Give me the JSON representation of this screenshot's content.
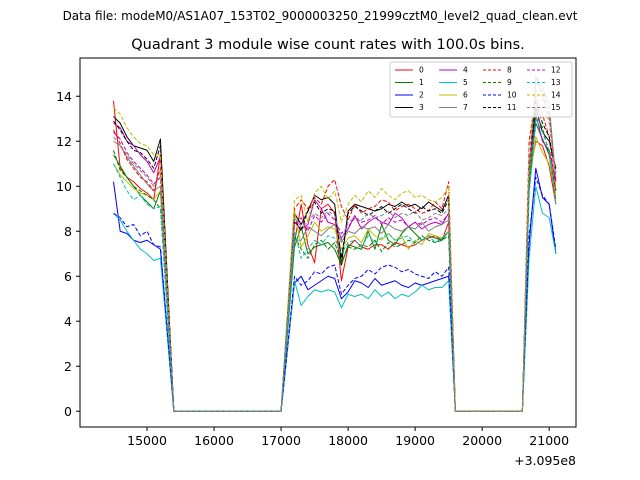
{
  "header": {
    "file_line": "Data file: modeM0/AS1A07_153T02_9000003250_21999cztM0_level2_quad_clean.evt"
  },
  "chart_data": {
    "type": "line",
    "title": "Quadrant 3 module wise count rates with 100.0s bins.",
    "xlabel": "",
    "ylabel": "",
    "x_offset_label": "+3.095e8",
    "xlim": [
      14000,
      21400
    ],
    "ylim": [
      -0.7,
      15.7
    ],
    "x_ticks": [
      15000,
      16000,
      17000,
      18000,
      19000,
      20000,
      21000
    ],
    "x_tick_labels": [
      "15000",
      "16000",
      "17000",
      "18000",
      "19000",
      "20000",
      "21000"
    ],
    "y_ticks": [
      0,
      2,
      4,
      6,
      8,
      10,
      12,
      14
    ],
    "y_tick_labels": [
      "0",
      "2",
      "4",
      "6",
      "8",
      "10",
      "12",
      "14"
    ],
    "legend_position": "top-right",
    "segments": [
      {
        "start": 14500,
        "end": 15200
      },
      {
        "start": 17200,
        "end": 19500
      },
      {
        "start": 20700,
        "end": 21100
      }
    ],
    "gap_points": [
      {
        "from": 15200,
        "to": 15400
      },
      {
        "from": 17000,
        "to": 17200
      },
      {
        "from": 19500,
        "to": 19600
      },
      {
        "from": 20600,
        "to": 20700
      }
    ],
    "series": [
      {
        "name": "0",
        "color": "#ff0000",
        "dash": false,
        "seg": [
          [
            13.8,
            10.8,
            10.4,
            10.2,
            9.9,
            9.7,
            9.4,
            11.4
          ],
          [
            7.5,
            9.2,
            7.4,
            6.6,
            9.0,
            9.2,
            8.8,
            5.8,
            7.3,
            7.6,
            7.3,
            7.2,
            7.4,
            7.4,
            7.2,
            7.5,
            7.4,
            7.3,
            7.4,
            7.6,
            7.7,
            7.8,
            7.6,
            8.4
          ],
          [
            10.4,
            12.0,
            11.8,
            10.9,
            9.2
          ]
        ]
      },
      {
        "name": "1",
        "color": "#008000",
        "dash": false,
        "seg": [
          [
            11.4,
            10.9,
            10.4,
            10.0,
            9.6,
            9.3,
            9.0,
            9.8
          ],
          [
            7.3,
            8.2,
            7.0,
            7.3,
            7.4,
            7.5,
            7.2,
            6.5,
            7.4,
            7.3,
            7.2,
            8.0,
            7.2,
            8.3,
            7.6,
            7.4,
            7.9,
            8.2,
            7.9,
            7.6,
            7.8,
            7.7,
            7.6,
            8.0
          ],
          [
            10.2,
            12.8,
            12.1,
            11.4,
            9.8
          ]
        ]
      },
      {
        "name": "2",
        "color": "#0000ff",
        "dash": false,
        "seg": [
          [
            10.2,
            8.0,
            7.9,
            7.6,
            7.5,
            7.6,
            7.4,
            7.2
          ],
          [
            5.7,
            6.0,
            5.4,
            5.6,
            5.8,
            6.0,
            5.9,
            5.0,
            5.3,
            5.8,
            5.7,
            5.5,
            5.9,
            5.6,
            5.7,
            5.8,
            5.6,
            5.5,
            5.7,
            5.6,
            5.7,
            5.8,
            5.9,
            6.0
          ],
          [
            7.4,
            10.8,
            9.5,
            9.2,
            7.0
          ]
        ]
      },
      {
        "name": "3",
        "color": "#000000",
        "dash": false,
        "seg": [
          [
            13.1,
            12.8,
            12.2,
            11.8,
            11.7,
            11.6,
            11.1,
            12.1
          ],
          [
            8.8,
            8.3,
            8.9,
            9.6,
            9.4,
            9.5,
            9.2,
            6.5,
            8.9,
            9.2,
            9.1,
            9.0,
            8.9,
            9.0,
            9.2,
            9.1,
            9.3,
            9.1,
            9.2,
            9.0,
            9.3,
            9.1,
            8.9,
            9.6
          ],
          [
            10.8,
            13.5,
            12.4,
            12.0,
            10.8
          ]
        ]
      },
      {
        "name": "4",
        "color": "#bf00bf",
        "dash": false,
        "seg": [
          [
            12.8,
            12.6,
            12.0,
            11.8,
            11.4,
            11.1,
            10.6,
            11.3
          ],
          [
            8.4,
            8.1,
            8.3,
            9.4,
            9.0,
            8.4,
            8.3,
            7.7,
            8.1,
            8.7,
            8.1,
            8.4,
            8.6,
            8.4,
            8.3,
            8.8,
            8.6,
            8.2,
            8.4,
            8.1,
            8.3,
            8.4,
            8.3,
            8.8
          ],
          [
            10.6,
            13.2,
            12.0,
            11.6,
            10.2
          ]
        ]
      },
      {
        "name": "5",
        "color": "#00bfbf",
        "dash": false,
        "seg": [
          [
            8.8,
            8.5,
            8.0,
            7.6,
            7.2,
            7.0,
            6.7,
            6.8
          ],
          [
            5.8,
            4.7,
            5.1,
            5.4,
            5.3,
            5.4,
            5.3,
            4.6,
            5.2,
            5.1,
            5.2,
            5.0,
            5.4,
            5.1,
            5.3,
            5.0,
            5.2,
            5.1,
            5.3,
            5.6,
            5.4,
            5.5,
            5.5,
            5.8
          ],
          [
            6.8,
            10.0,
            8.8,
            8.6,
            7.0
          ]
        ]
      },
      {
        "name": "6",
        "color": "#bfbf00",
        "dash": false,
        "seg": [
          [
            11.0,
            10.5,
            10.2,
            9.9,
            9.7,
            9.6,
            9.4,
            9.8
          ],
          [
            8.9,
            7.3,
            7.8,
            8.4,
            8.0,
            8.2,
            8.1,
            7.2,
            7.7,
            7.8,
            7.5,
            8.1,
            7.8,
            7.6,
            7.9,
            7.6,
            7.8,
            7.2,
            7.6,
            7.4,
            7.9,
            7.8,
            7.7,
            8.0
          ],
          [
            10.0,
            12.2,
            11.5,
            11.0,
            9.6
          ]
        ]
      },
      {
        "name": "7",
        "color": "#808080",
        "dash": false,
        "seg": [
          [
            12.0,
            11.8,
            11.3,
            10.9,
            10.5,
            10.1,
            9.8,
            10.0
          ],
          [
            7.6,
            7.6,
            8.2,
            8.0,
            7.8,
            8.1,
            8.3,
            7.5,
            8.0,
            7.9,
            8.2,
            8.1,
            8.2,
            7.9,
            8.3,
            8.1,
            8.0,
            8.2,
            8.1,
            8.4,
            8.0,
            8.2,
            8.3,
            8.5
          ],
          [
            10.2,
            14.9,
            14.4,
            13.6,
            10.3
          ]
        ]
      },
      {
        "name": "8",
        "color": "#ff0000",
        "dash": true,
        "seg": [
          [
            12.5,
            11.9,
            11.2,
            10.8,
            10.4,
            10.2,
            9.8,
            10.8
          ],
          [
            9.0,
            9.4,
            9.0,
            9.5,
            9.2,
            10.0,
            10.3,
            9.1,
            8.5,
            9.2,
            8.8,
            9.0,
            9.1,
            9.4,
            9.3,
            8.9,
            9.1,
            9.2,
            9.0,
            8.8,
            8.9,
            9.3,
            9.0,
            10.2
          ],
          [
            12.0,
            14.0,
            13.2,
            12.2,
            9.8
          ]
        ]
      },
      {
        "name": "9",
        "color": "#008000",
        "dash": true,
        "seg": [
          [
            11.6,
            10.7,
            10.4,
            10.0,
            9.8,
            9.6,
            9.4,
            9.0
          ],
          [
            7.8,
            7.2,
            6.8,
            7.4,
            7.6,
            7.2,
            7.5,
            6.6,
            7.3,
            7.2,
            7.4,
            7.3,
            7.6,
            7.1,
            7.5,
            7.3,
            7.4,
            7.6,
            7.5,
            7.8,
            7.6,
            7.5,
            7.6,
            7.8
          ],
          [
            9.8,
            13.2,
            12.6,
            11.4,
            9.4
          ]
        ]
      },
      {
        "name": "10",
        "color": "#0000ff",
        "dash": true,
        "seg": [
          [
            8.8,
            8.6,
            8.2,
            8.3,
            7.8,
            8.0,
            7.4,
            7.3
          ],
          [
            6.0,
            5.6,
            5.8,
            6.2,
            6.1,
            6.4,
            6.5,
            5.2,
            5.6,
            5.9,
            6.0,
            6.3,
            6.1,
            6.4,
            6.5,
            6.4,
            6.2,
            6.3,
            6.1,
            6.0,
            5.9,
            6.2,
            6.0,
            6.4
          ],
          [
            7.8,
            10.4,
            9.6,
            9.2,
            7.2
          ]
        ]
      },
      {
        "name": "11",
        "color": "#000000",
        "dash": true,
        "seg": [
          [
            12.9,
            12.5,
            12.0,
            11.6,
            11.5,
            11.2,
            10.8,
            11.8
          ],
          [
            8.5,
            8.0,
            8.9,
            9.3,
            8.8,
            9.0,
            8.9,
            6.8,
            8.8,
            9.1,
            8.9,
            8.7,
            8.9,
            9.1,
            8.8,
            9.0,
            9.2,
            9.0,
            8.8,
            9.1,
            8.9,
            9.0,
            8.8,
            9.4
          ],
          [
            10.8,
            13.8,
            12.8,
            12.2,
            10.6
          ]
        ]
      },
      {
        "name": "12",
        "color": "#bf00bf",
        "dash": true,
        "seg": [
          [
            12.4,
            12.1,
            11.5,
            11.1,
            10.8,
            10.5,
            10.1,
            10.4
          ],
          [
            8.3,
            8.6,
            8.0,
            8.7,
            8.4,
            8.8,
            8.5,
            7.9,
            8.2,
            8.6,
            8.4,
            8.5,
            8.7,
            8.3,
            8.6,
            8.4,
            8.5,
            8.2,
            8.4,
            8.3,
            8.5,
            8.6,
            8.4,
            8.8
          ],
          [
            10.8,
            14.8,
            14.2,
            13.2,
            10.2
          ]
        ]
      },
      {
        "name": "13",
        "color": "#00bfbf",
        "dash": true,
        "seg": [
          [
            11.0,
            10.4,
            9.8,
            9.4,
            9.6,
            9.2,
            9.0,
            9.1
          ],
          [
            8.0,
            6.8,
            7.2,
            7.6,
            7.4,
            7.8,
            7.7,
            7.0,
            7.5,
            7.6,
            7.3,
            7.8,
            7.5,
            7.7,
            7.9,
            7.6,
            7.7,
            7.8,
            7.4,
            7.6,
            7.8,
            7.5,
            7.7,
            8.0
          ],
          [
            9.6,
            13.0,
            12.4,
            11.6,
            9.2
          ]
        ]
      },
      {
        "name": "14",
        "color": "#bfbf00",
        "dash": true,
        "seg": [
          [
            13.5,
            13.2,
            12.6,
            12.2,
            11.9,
            11.8,
            11.4,
            11.4
          ],
          [
            9.4,
            9.6,
            8.4,
            9.7,
            10.0,
            9.4,
            9.8,
            8.4,
            9.2,
            9.6,
            9.3,
            9.8,
            9.5,
            9.9,
            9.6,
            9.4,
            9.7,
            9.8,
            9.5,
            9.6,
            9.4,
            9.3,
            9.5,
            10.0
          ],
          [
            11.6,
            14.3,
            13.8,
            12.8,
            10.4
          ]
        ]
      },
      {
        "name": "15",
        "color": "#808080",
        "dash": true,
        "seg": [
          [
            12.2,
            11.8,
            11.4,
            11.0,
            10.7,
            10.4,
            10.0,
            10.4
          ],
          [
            8.6,
            8.2,
            8.4,
            8.8,
            8.6,
            8.9,
            8.7,
            7.6,
            8.4,
            8.6,
            8.5,
            8.8,
            8.6,
            8.7,
            8.9,
            8.6,
            8.8,
            8.7,
            8.9,
            8.5,
            8.6,
            8.8,
            8.7,
            9.0
          ],
          [
            10.6,
            14.6,
            14.0,
            13.0,
            10.4
          ]
        ]
      }
    ]
  }
}
